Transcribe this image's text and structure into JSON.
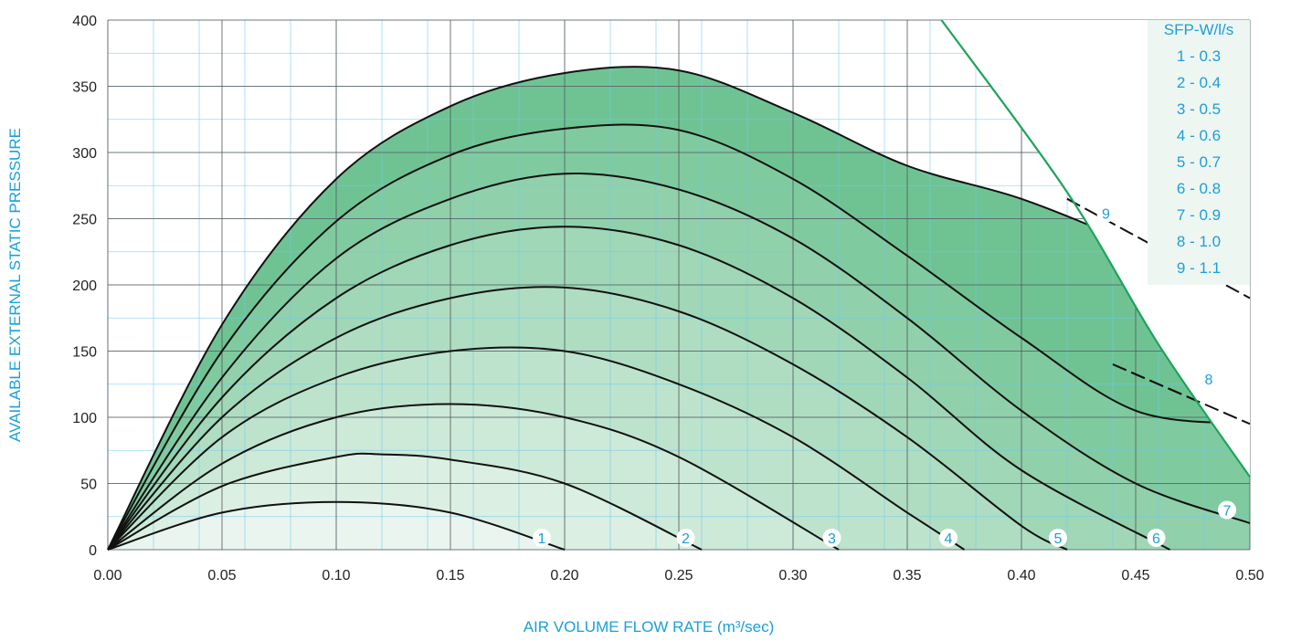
{
  "chart_data": {
    "type": "line",
    "xlabel": "AIR VOLUME FLOW RATE (m³/sec)",
    "ylabel": "AVAILABLE EXTERNAL STATIC PRESSURE",
    "xlim": [
      0,
      0.5
    ],
    "ylim": [
      0,
      400
    ],
    "xticks": [
      "0.00",
      "0.05",
      "0.10",
      "0.15",
      "0.20",
      "0.25",
      "0.30",
      "0.35",
      "0.40",
      "0.45",
      "0.50"
    ],
    "yticks": [
      "0",
      "50",
      "100",
      "150",
      "200",
      "250",
      "300",
      "350",
      "400"
    ],
    "grid": true,
    "legend": {
      "title": "SFP-W/l/s",
      "placement": "top-right",
      "entries": [
        "1 - 0.3",
        "2 - 0.4",
        "3 - 0.5",
        "4 - 0.6",
        "5 - 0.7",
        "6 - 0.8",
        "7 - 0.9",
        "8 - 1.0",
        "9 - 1.1"
      ]
    },
    "fan_curves": [
      {
        "points": [
          [
            0,
            0
          ],
          [
            0.05,
            28
          ],
          [
            0.1,
            36
          ],
          [
            0.15,
            28
          ],
          [
            0.2,
            0
          ]
        ]
      },
      {
        "points": [
          [
            0,
            0
          ],
          [
            0.05,
            48
          ],
          [
            0.1,
            70
          ],
          [
            0.12,
            72
          ],
          [
            0.15,
            68
          ],
          [
            0.2,
            50
          ],
          [
            0.26,
            0
          ]
        ]
      },
      {
        "points": [
          [
            0,
            0
          ],
          [
            0.05,
            65
          ],
          [
            0.1,
            100
          ],
          [
            0.15,
            110
          ],
          [
            0.2,
            100
          ],
          [
            0.25,
            70
          ],
          [
            0.32,
            0
          ]
        ]
      },
      {
        "points": [
          [
            0,
            0
          ],
          [
            0.05,
            85
          ],
          [
            0.1,
            130
          ],
          [
            0.15,
            150
          ],
          [
            0.2,
            150
          ],
          [
            0.25,
            125
          ],
          [
            0.3,
            85
          ],
          [
            0.35,
            28
          ],
          [
            0.375,
            0
          ]
        ]
      },
      {
        "points": [
          [
            0,
            0
          ],
          [
            0.05,
            100
          ],
          [
            0.1,
            160
          ],
          [
            0.15,
            190
          ],
          [
            0.2,
            198
          ],
          [
            0.25,
            180
          ],
          [
            0.3,
            140
          ],
          [
            0.35,
            85
          ],
          [
            0.4,
            18
          ],
          [
            0.42,
            0
          ]
        ]
      },
      {
        "points": [
          [
            0,
            0
          ],
          [
            0.05,
            115
          ],
          [
            0.1,
            190
          ],
          [
            0.15,
            230
          ],
          [
            0.2,
            244
          ],
          [
            0.25,
            230
          ],
          [
            0.3,
            190
          ],
          [
            0.35,
            130
          ],
          [
            0.4,
            60
          ],
          [
            0.465,
            0
          ]
        ]
      },
      {
        "points": [
          [
            0,
            0
          ],
          [
            0.05,
            130
          ],
          [
            0.1,
            220
          ],
          [
            0.15,
            265
          ],
          [
            0.2,
            284
          ],
          [
            0.25,
            272
          ],
          [
            0.3,
            235
          ],
          [
            0.35,
            175
          ],
          [
            0.4,
            105
          ],
          [
            0.45,
            50
          ],
          [
            0.5,
            20
          ]
        ]
      },
      {
        "points": [
          [
            0,
            0
          ],
          [
            0.05,
            150
          ],
          [
            0.1,
            248
          ],
          [
            0.15,
            298
          ],
          [
            0.2,
            318
          ],
          [
            0.25,
            317
          ],
          [
            0.3,
            280
          ],
          [
            0.35,
            222
          ],
          [
            0.4,
            160
          ],
          [
            0.45,
            105
          ],
          [
            0.5,
            95
          ]
        ]
      },
      {
        "points": [
          [
            0,
            0
          ],
          [
            0.05,
            170
          ],
          [
            0.1,
            280
          ],
          [
            0.15,
            335
          ],
          [
            0.2,
            360
          ],
          [
            0.25,
            362
          ],
          [
            0.3,
            330
          ],
          [
            0.35,
            290
          ],
          [
            0.4,
            265
          ],
          [
            0.45,
            230
          ],
          [
            0.5,
            190
          ]
        ]
      }
    ],
    "sfp_lines": [
      {
        "label": "9",
        "points": [
          [
            0.42,
            265
          ],
          [
            0.5,
            190
          ]
        ]
      },
      {
        "label": "8",
        "points": [
          [
            0.44,
            140
          ],
          [
            0.5,
            95
          ]
        ]
      }
    ],
    "limit_curve": {
      "points": [
        [
          0.365,
          400
        ],
        [
          0.42,
          270
        ],
        [
          0.46,
          155
        ],
        [
          0.5,
          55
        ]
      ]
    },
    "curve_labels": [
      {
        "text": "1",
        "x": 0.19,
        "y": 9
      },
      {
        "text": "2",
        "x": 0.253,
        "y": 9
      },
      {
        "text": "3",
        "x": 0.317,
        "y": 9
      },
      {
        "text": "4",
        "x": 0.368,
        "y": 9
      },
      {
        "text": "5",
        "x": 0.416,
        "y": 9
      },
      {
        "text": "6",
        "x": 0.459,
        "y": 9
      },
      {
        "text": "7",
        "x": 0.49,
        "y": 30
      },
      {
        "text": "8",
        "x": 0.482,
        "y": 129
      },
      {
        "text": "9",
        "x": 0.437,
        "y": 254
      }
    ]
  }
}
